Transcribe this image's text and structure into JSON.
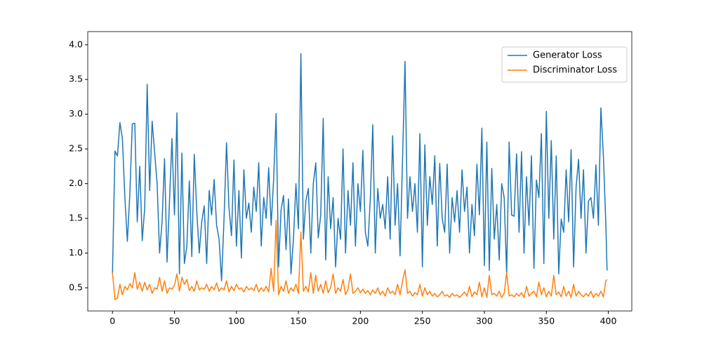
{
  "chart_data": {
    "type": "line",
    "x": [
      0,
      2,
      4,
      6,
      8,
      10,
      12,
      14,
      16,
      18,
      20,
      22,
      24,
      26,
      28,
      30,
      32,
      34,
      36,
      38,
      40,
      42,
      44,
      46,
      48,
      50,
      52,
      54,
      56,
      58,
      60,
      62,
      64,
      66,
      68,
      70,
      72,
      74,
      76,
      78,
      80,
      82,
      84,
      86,
      88,
      90,
      92,
      94,
      96,
      98,
      100,
      102,
      104,
      106,
      108,
      110,
      112,
      114,
      116,
      118,
      120,
      122,
      124,
      126,
      128,
      130,
      132,
      134,
      136,
      138,
      140,
      142,
      144,
      146,
      148,
      150,
      152,
      154,
      156,
      158,
      160,
      162,
      164,
      166,
      168,
      170,
      172,
      174,
      176,
      178,
      180,
      182,
      184,
      186,
      188,
      190,
      192,
      194,
      196,
      198,
      200,
      202,
      204,
      206,
      208,
      210,
      212,
      214,
      216,
      218,
      220,
      222,
      224,
      226,
      228,
      230,
      232,
      234,
      236,
      238,
      240,
      242,
      244,
      246,
      248,
      250,
      252,
      254,
      256,
      258,
      260,
      262,
      264,
      266,
      268,
      270,
      272,
      274,
      276,
      278,
      280,
      282,
      284,
      286,
      288,
      290,
      292,
      294,
      296,
      298,
      300,
      302,
      304,
      306,
      308,
      310,
      312,
      314,
      316,
      318,
      320,
      322,
      324,
      326,
      328,
      330,
      332,
      334,
      336,
      338,
      340,
      342,
      344,
      346,
      348,
      350,
      352,
      354,
      356,
      358,
      360,
      362,
      364,
      366,
      368,
      370,
      372,
      374,
      376,
      378,
      380,
      382,
      384,
      386,
      388,
      390,
      392,
      394,
      396,
      398,
      399
    ],
    "series": [
      {
        "name": "Generator Loss",
        "color": "#1f77b4",
        "values": [
          0.7,
          2.47,
          2.4,
          2.88,
          2.65,
          1.8,
          1.17,
          1.85,
          2.86,
          2.87,
          1.45,
          2.25,
          1.18,
          1.65,
          3.43,
          1.9,
          2.9,
          2.45,
          2.0,
          1.0,
          1.45,
          2.36,
          0.87,
          1.75,
          2.65,
          1.55,
          3.02,
          0.7,
          2.44,
          0.85,
          1.1,
          2.04,
          0.95,
          2.42,
          1.6,
          1.0,
          1.45,
          1.68,
          0.85,
          1.9,
          1.55,
          2.06,
          1.4,
          1.2,
          0.6,
          1.5,
          2.59,
          1.65,
          1.25,
          2.34,
          1.1,
          1.9,
          0.93,
          2.2,
          1.5,
          1.72,
          1.3,
          1.95,
          1.6,
          2.3,
          1.1,
          1.8,
          1.5,
          2.23,
          1.4,
          2.06,
          3.01,
          0.8,
          1.62,
          1.83,
          1.05,
          1.78,
          0.7,
          1.2,
          2.0,
          1.35,
          3.87,
          1.2,
          1.75,
          1.93,
          1.0,
          2.0,
          2.3,
          1.22,
          1.55,
          2.94,
          0.9,
          2.1,
          1.35,
          1.8,
          0.8,
          1.5,
          1.2,
          2.5,
          1.0,
          1.9,
          1.4,
          2.3,
          1.1,
          2.0,
          1.6,
          2.48,
          1.3,
          1.1,
          1.78,
          2.85,
          1.0,
          1.93,
          1.5,
          1.7,
          1.35,
          2.1,
          1.2,
          2.69,
          1.4,
          2.0,
          0.96,
          2.35,
          3.76,
          1.5,
          2.1,
          1.6,
          2.0,
          1.3,
          2.72,
          0.8,
          2.56,
          1.4,
          2.1,
          1.7,
          2.4,
          1.1,
          2.29,
          1.5,
          1.3,
          2.28,
          1.0,
          1.8,
          1.45,
          1.9,
          1.3,
          2.2,
          1.6,
          1.95,
          1.0,
          1.7,
          1.25,
          2.28,
          1.55,
          2.8,
          0.82,
          2.6,
          0.75,
          2.22,
          1.2,
          1.7,
          0.9,
          2.0,
          1.8,
          0.7,
          2.6,
          1.55,
          1.53,
          2.43,
          1.3,
          2.46,
          1.0,
          2.1,
          1.4,
          2.4,
          0.78,
          2.05,
          1.8,
          2.72,
          0.85,
          3.04,
          1.5,
          2.62,
          1.2,
          2.4,
          0.7,
          1.49,
          1.3,
          2.2,
          1.45,
          2.49,
          0.8,
          1.95,
          2.35,
          1.5,
          2.2,
          1.0,
          1.75,
          1.8,
          1.5,
          2.27,
          1.4,
          3.09,
          2.41,
          1.42,
          0.75
        ]
      },
      {
        "name": "Discriminator Loss",
        "color": "#ff7f0e",
        "values": [
          0.72,
          0.33,
          0.35,
          0.55,
          0.4,
          0.52,
          0.47,
          0.56,
          0.5,
          0.72,
          0.48,
          0.58,
          0.45,
          0.58,
          0.47,
          0.55,
          0.42,
          0.5,
          0.48,
          0.65,
          0.45,
          0.6,
          0.42,
          0.5,
          0.48,
          0.54,
          0.7,
          0.45,
          0.65,
          0.55,
          0.62,
          0.46,
          0.52,
          0.45,
          0.6,
          0.47,
          0.5,
          0.48,
          0.55,
          0.45,
          0.52,
          0.47,
          0.57,
          0.45,
          0.5,
          0.47,
          0.6,
          0.44,
          0.52,
          0.46,
          0.55,
          0.48,
          0.5,
          0.44,
          0.52,
          0.47,
          0.5,
          0.46,
          0.55,
          0.44,
          0.5,
          0.45,
          0.52,
          0.44,
          0.78,
          0.45,
          1.47,
          0.4,
          0.52,
          0.45,
          0.6,
          0.42,
          0.5,
          0.45,
          0.55,
          0.42,
          1.3,
          0.45,
          0.52,
          0.44,
          0.72,
          0.42,
          0.68,
          0.45,
          0.55,
          0.42,
          0.6,
          0.43,
          0.5,
          0.7,
          0.42,
          0.5,
          0.45,
          0.62,
          0.4,
          0.48,
          0.7,
          0.42,
          0.45,
          0.5,
          0.43,
          0.48,
          0.42,
          0.46,
          0.4,
          0.47,
          0.42,
          0.5,
          0.4,
          0.45,
          0.38,
          0.5,
          0.42,
          0.45,
          0.4,
          0.55,
          0.4,
          0.6,
          0.76,
          0.42,
          0.45,
          0.38,
          0.43,
          0.4,
          0.55,
          0.38,
          0.5,
          0.4,
          0.45,
          0.38,
          0.42,
          0.37,
          0.4,
          0.45,
          0.38,
          0.4,
          0.36,
          0.42,
          0.38,
          0.4,
          0.36,
          0.4,
          0.44,
          0.38,
          0.52,
          0.37,
          0.44,
          0.4,
          0.58,
          0.37,
          0.5,
          0.36,
          0.68,
          0.4,
          0.42,
          0.38,
          0.45,
          0.36,
          0.42,
          0.72,
          0.38,
          0.4,
          0.37,
          0.42,
          0.38,
          0.43,
          0.36,
          0.52,
          0.38,
          0.42,
          0.45,
          0.37,
          0.58,
          0.4,
          0.5,
          0.37,
          0.45,
          0.38,
          0.68,
          0.4,
          0.44,
          0.37,
          0.52,
          0.38,
          0.45,
          0.36,
          0.55,
          0.38,
          0.45,
          0.4,
          0.37,
          0.42,
          0.38,
          0.45,
          0.36,
          0.42,
          0.38,
          0.45,
          0.37,
          0.6,
          0.62
        ]
      }
    ],
    "xlim": [
      -19.95,
      418.95
    ],
    "ylim": [
      0.166,
      4.19
    ],
    "xticks": [
      0,
      50,
      100,
      150,
      200,
      250,
      300,
      350,
      400
    ],
    "yticks": [
      0.5,
      {
        "value": 1,
        "label": "1.0"
      },
      1.5,
      {
        "value": 2,
        "label": "2.0"
      },
      2.5,
      {
        "value": 3,
        "label": "3.0"
      },
      3.5,
      {
        "value": 4,
        "label": "4.0"
      }
    ],
    "legend": "upper right"
  }
}
